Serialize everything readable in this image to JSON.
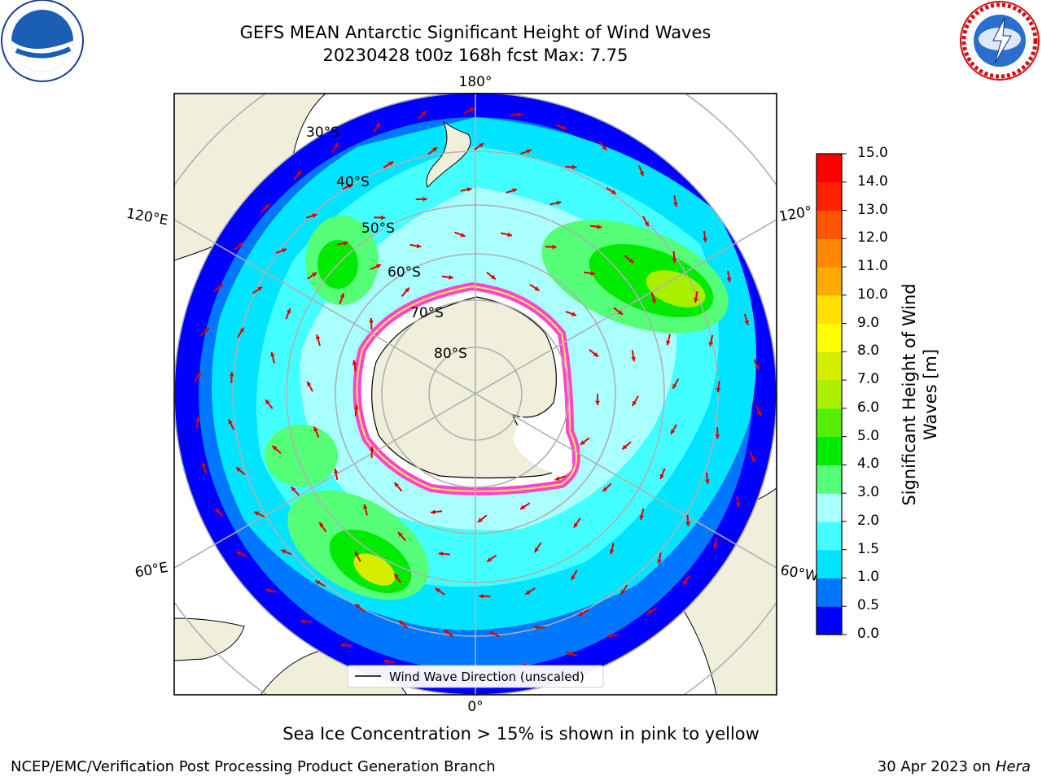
{
  "header": {
    "title_line1": "GEFS MEAN Antarctic Significant Height of Wind Waves",
    "title_line2": "20230428 t00z 168h fcst   Max: 7.75"
  },
  "logos": {
    "left": "noaa-logo",
    "right": "national-weather-service-logo"
  },
  "map": {
    "projection": "south-polar-stereographic",
    "longitude_labels": [
      "180°",
      "120°E",
      "120°",
      "60°E",
      "60°W",
      "0°"
    ],
    "latitude_labels": [
      "30°S",
      "40°S",
      "50°S",
      "60°S",
      "70°S",
      "80°S"
    ],
    "legend_entry": "Wind Wave Direction (unscaled)",
    "arrow_color": "#e00000"
  },
  "colorbar": {
    "title": "Significant Height of Wind Waves [m]",
    "levels": [
      "0.0",
      "0.5",
      "1.0",
      "1.5",
      "2.0",
      "3.0",
      "4.0",
      "5.0",
      "6.0",
      "7.0",
      "8.0",
      "9.0",
      "10.0",
      "11.0",
      "12.0",
      "13.0",
      "14.0",
      "15.0"
    ],
    "colors": [
      "#0000ff",
      "#0077ff",
      "#00e4ff",
      "#44ffff",
      "#aaffff",
      "#55ff77",
      "#00ea00",
      "#55ee00",
      "#aaee00",
      "#d5ee00",
      "#ffff00",
      "#ffe000",
      "#ffaa00",
      "#ff8800",
      "#ff5500",
      "#ff2200",
      "#ff0000"
    ]
  },
  "caption": "Sea Ice Concentration > 15% is shown in pink to yellow",
  "footer": {
    "left": "NCEP/EMC/Verification Post Processing Product Generation Branch",
    "right_date": "30 Apr 2023 on ",
    "right_host": "Hera"
  },
  "chart_data": {
    "type": "heatmap",
    "title": "GEFS MEAN Antarctic Significant Height of Wind Waves",
    "subtitle": "20230428 t00z 168h fcst   Max: 7.75",
    "max_value": 7.75,
    "colorbar_label": "Significant Height of Wind Waves [m]",
    "colorbar_range": [
      0.0,
      15.0
    ],
    "legend": [
      "Wind Wave Direction (unscaled)"
    ],
    "legend_position": "bottom-center",
    "grid": true
  }
}
